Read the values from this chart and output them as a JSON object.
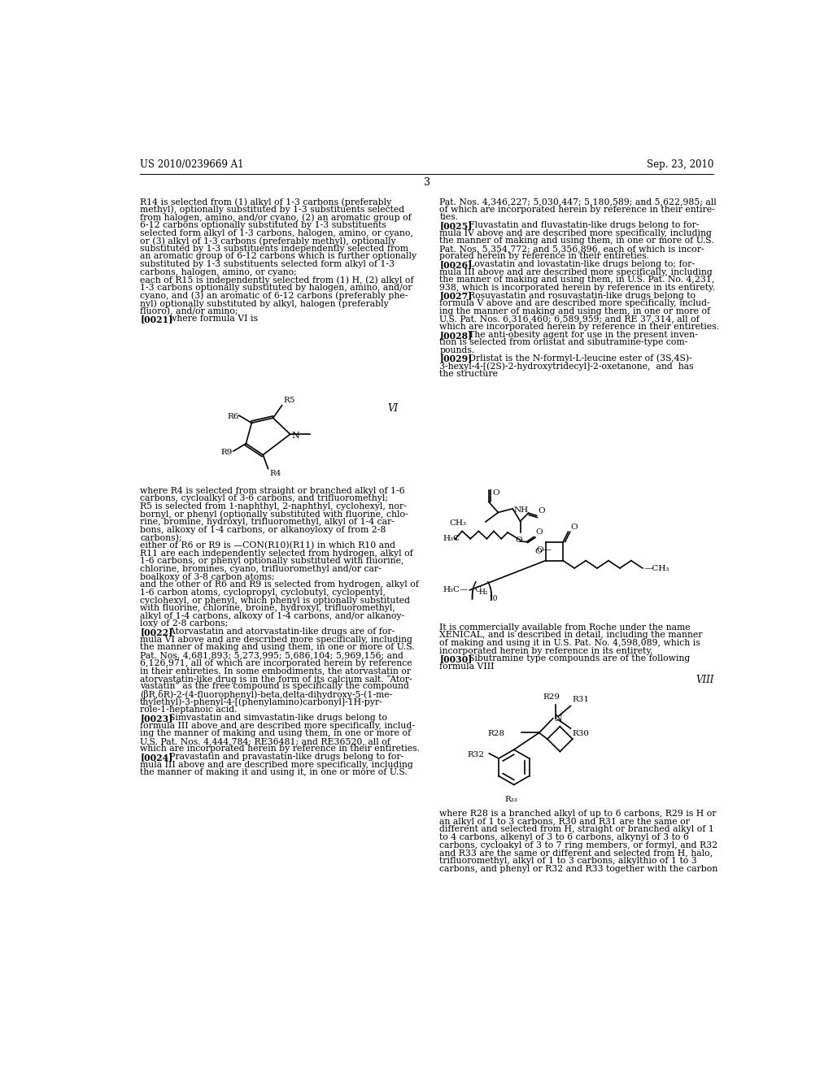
{
  "background_color": "#ffffff",
  "header_left": "US 2010/0239669 A1",
  "header_right": "Sep. 23, 2010",
  "page_number": "3",
  "left_col_text": [
    "R14 is selected from (1) alkyl of 1-3 carbons (preferably",
    "methyl), optionally substituted by 1-3 substituents selected",
    "from halogen, amino, and/or cyano, (2) an aromatic group of",
    "6-12 carbons optionally substituted by 1-3 substituents",
    "selected form alkyl of 1-3 carbons, halogen, amino, or cyano,",
    "or (3) alkyl of 1-3 carbons (preferably methyl), optionally",
    "substituted by 1-3 substituents independently selected from",
    "an aromatic group of 6-12 carbons which is further optionally",
    "substituted by 1-3 substituents selected form alkyl of 1-3",
    "carbons, halogen, amino, or cyano;",
    "each of R15 is independently selected from (1) H, (2) alkyl of",
    "1-3 carbons optionally substituted by halogen, amino, and/or",
    "cyano, and (3) an aromatic of 6-12 carbons (preferably phe-",
    "nyl) optionally substituted by alkyl, halogen (preferably",
    "fluoro), and/or amino;",
    "[0021]    where formula VI is"
  ],
  "right_col_text_top": [
    "Pat. Nos. 4,346,227; 5,030,447; 5,180,589; and 5,622,985; all",
    "of which are incorporated herein by reference in their entire-",
    "ties.",
    "[0025]    Fluvastatin and fluvastatin-like drugs belong to for-",
    "mula IV above and are described more specifically, including",
    "the manner of making and using them, in one or more of U.S.",
    "Pat. Nos. 5,354,772; and 5,356,896, each of which is incor-",
    "porated herein by reference in their entireties.",
    "[0026]    Lovastatin and lovastatin-like drugs belong to; for-",
    "mula III above and are described more specifically, including",
    "the manner of making and using them, in U.S. Pat. No. 4,231,",
    "938, which is incorporated herein by reference in its entirety.",
    "[0027]    Rosuvastatin and rosuvastatin-like drugs belong to",
    "formula V above and are described more specifically, includ-",
    "ing the manner of making and using them, in one or more of",
    "U.S. Pat. Nos. 6,316,460; 6,589,959; and RE 37,314, all of",
    "which are incorporated herein by reference in their entireties.",
    "[0028]    The anti-obesity agent for use in the present inven-",
    "tion is selected from orlistat and sibutramine-type com-",
    "pounds.",
    "[0029]    Orlistat is the N-formyl-L-leucine ester of (3S,4S)-",
    "3-hexyl-4-[(2S)-2-hydroxytridecyl]-2-oxetanone,  and  has",
    "the structure"
  ],
  "right_col_text_bottom": [
    "It is commercially available from Roche under the name",
    "XENICAL, and is described in detail, including the manner",
    "of making and using it in U.S. Pat. No. 4,598,089, which is",
    "incorporated herein by reference in its entirety.",
    "[0030]    Sibutramine type compounds are of the following",
    "formula VIII"
  ],
  "left_col_text2": [
    "where R4 is selected from straight or branched alkyl of 1-6",
    "carbons, cycloalkyl of 3-6 carbons, and trifluoromethyl;",
    "R5 is selected from 1-naphthyl, 2-naphthyl, cyclohexyl, nor-",
    "bornyl, or phenyl (optionally substituted with fluorine, chlo-",
    "rine, bromine, hydroxyl, trifluoromethyl, alkyl of 1-4 car-",
    "bons, alkoxy of 1-4 carbons, or alkanoyloxy of from 2-8",
    "carbons);",
    "either of R6 or R9 is —CON(R10)(R11) in which R10 and",
    "R11 are each independently selected from hydrogen, alkyl of",
    "1-6 carbons, or phenyl optionally substituted with fluorine,",
    "chlorine, bromines, cyano, trifluoromethyl and/or car-",
    "boalkoxy of 3-8 carbon atoms;",
    "and the other of R6 and R9 is selected from hydrogen, alkyl of",
    "1-6 carbon atoms, cyclopropyl, cyclobutyl, cyclopentyl,",
    "cyclohexyl, or phenyl, which phenyl is optionally substituted",
    "with fluorine, chlorine, broine, hydroxyl, trifluoromethyl,",
    "alkyl of 1-4 carbons, alkoxy of 1-4 carbons, and/or alkanoy-",
    "loxy of 2-8 carbons;",
    "[0022]    Atorvastatin and atorvastatin-like drugs are of for-",
    "mula VI above and are described more specifically, including",
    "the manner of making and using them, in one or more of U.S.",
    "Pat. Nos. 4,681,893; 5,273,995; 5,686,104; 5,969,156; and",
    "6,126,971, all of which are incorporated herein by reference",
    "in their entireties. In some embodiments, the atorvastatin or",
    "atorvastatin-like drug is in the form of its calcium salt. “Ator-",
    "vastatin” as the free compound is specifically the compound",
    "(βR,δR)-2-(4-fluorophenyl)-beta,delta-dihydroxy-5-(1-me-",
    "thylethyl)-3-phenyl-4-[(phenylamino)carbonyl]-1H-pyr-",
    "role-1-heptanoic acid.",
    "[0023]    Simvastatin and simvastatin-like drugs belong to",
    "formula III above and are described more specifically, includ-",
    "ing the manner of making and using them, in one or more of",
    "U.S. Pat. Nos. 4,444,784; RE36481; and RE36520, all of",
    "which are incorporated herein by reference in their entireties.",
    "[0024]    Pravastatin and pravastatin-like drugs belong to for-",
    "mula III above and are described more specifically, including",
    "the manner of making it and using it, in one or more of U.S."
  ],
  "right_col_text_bottom2": [
    "where R28 is a branched alkyl of up to 6 carbons, R29 is H or",
    "an alkyl of 1 to 3 carbons, R30 and R31 are the same or",
    "different and selected from H, straight or branched alkyl of 1",
    "to 4 carbons, alkenyl of 3 to 6 carbons, alkynyl of 3 to 6",
    "carbons, cycloakyl of 3 to 7 ring members, or formyl, and R32",
    "and R33 are the same or different and selected from H, halo,",
    "trifluoromethyl, alkyl of 1 to 3 carbons, alkylthio of 1 to 3",
    "carbons, and phenyl or R32 and R33 together with the carbon"
  ]
}
